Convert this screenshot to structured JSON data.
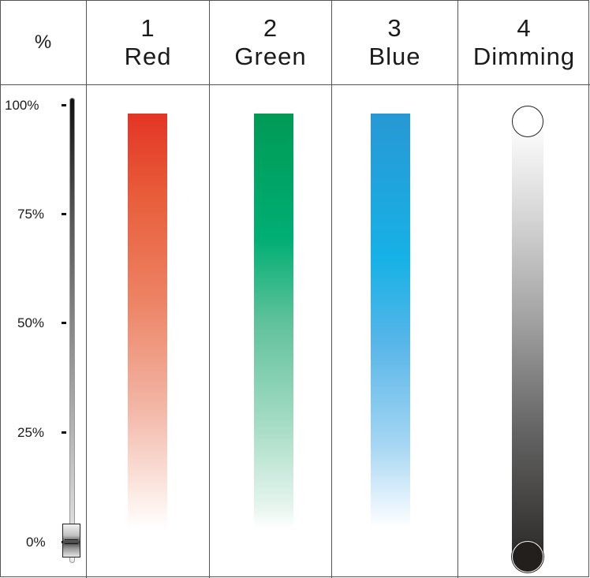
{
  "header": {
    "percent": "%",
    "channels": [
      {
        "number": "1",
        "name": "Red"
      },
      {
        "number": "2",
        "name": "Green"
      },
      {
        "number": "3",
        "name": "Blue"
      },
      {
        "number": "4",
        "name": "Dimming"
      }
    ]
  },
  "scale": {
    "ticks": [
      "100%",
      "75%",
      "50%",
      "25%",
      "0%"
    ],
    "fader_level_percent": 0
  },
  "colors": {
    "red": "#e33525",
    "green": "#009a55",
    "blue": "#2898d4",
    "dimming_top": "#ffffff",
    "dimming_bottom": "#231f1d"
  }
}
